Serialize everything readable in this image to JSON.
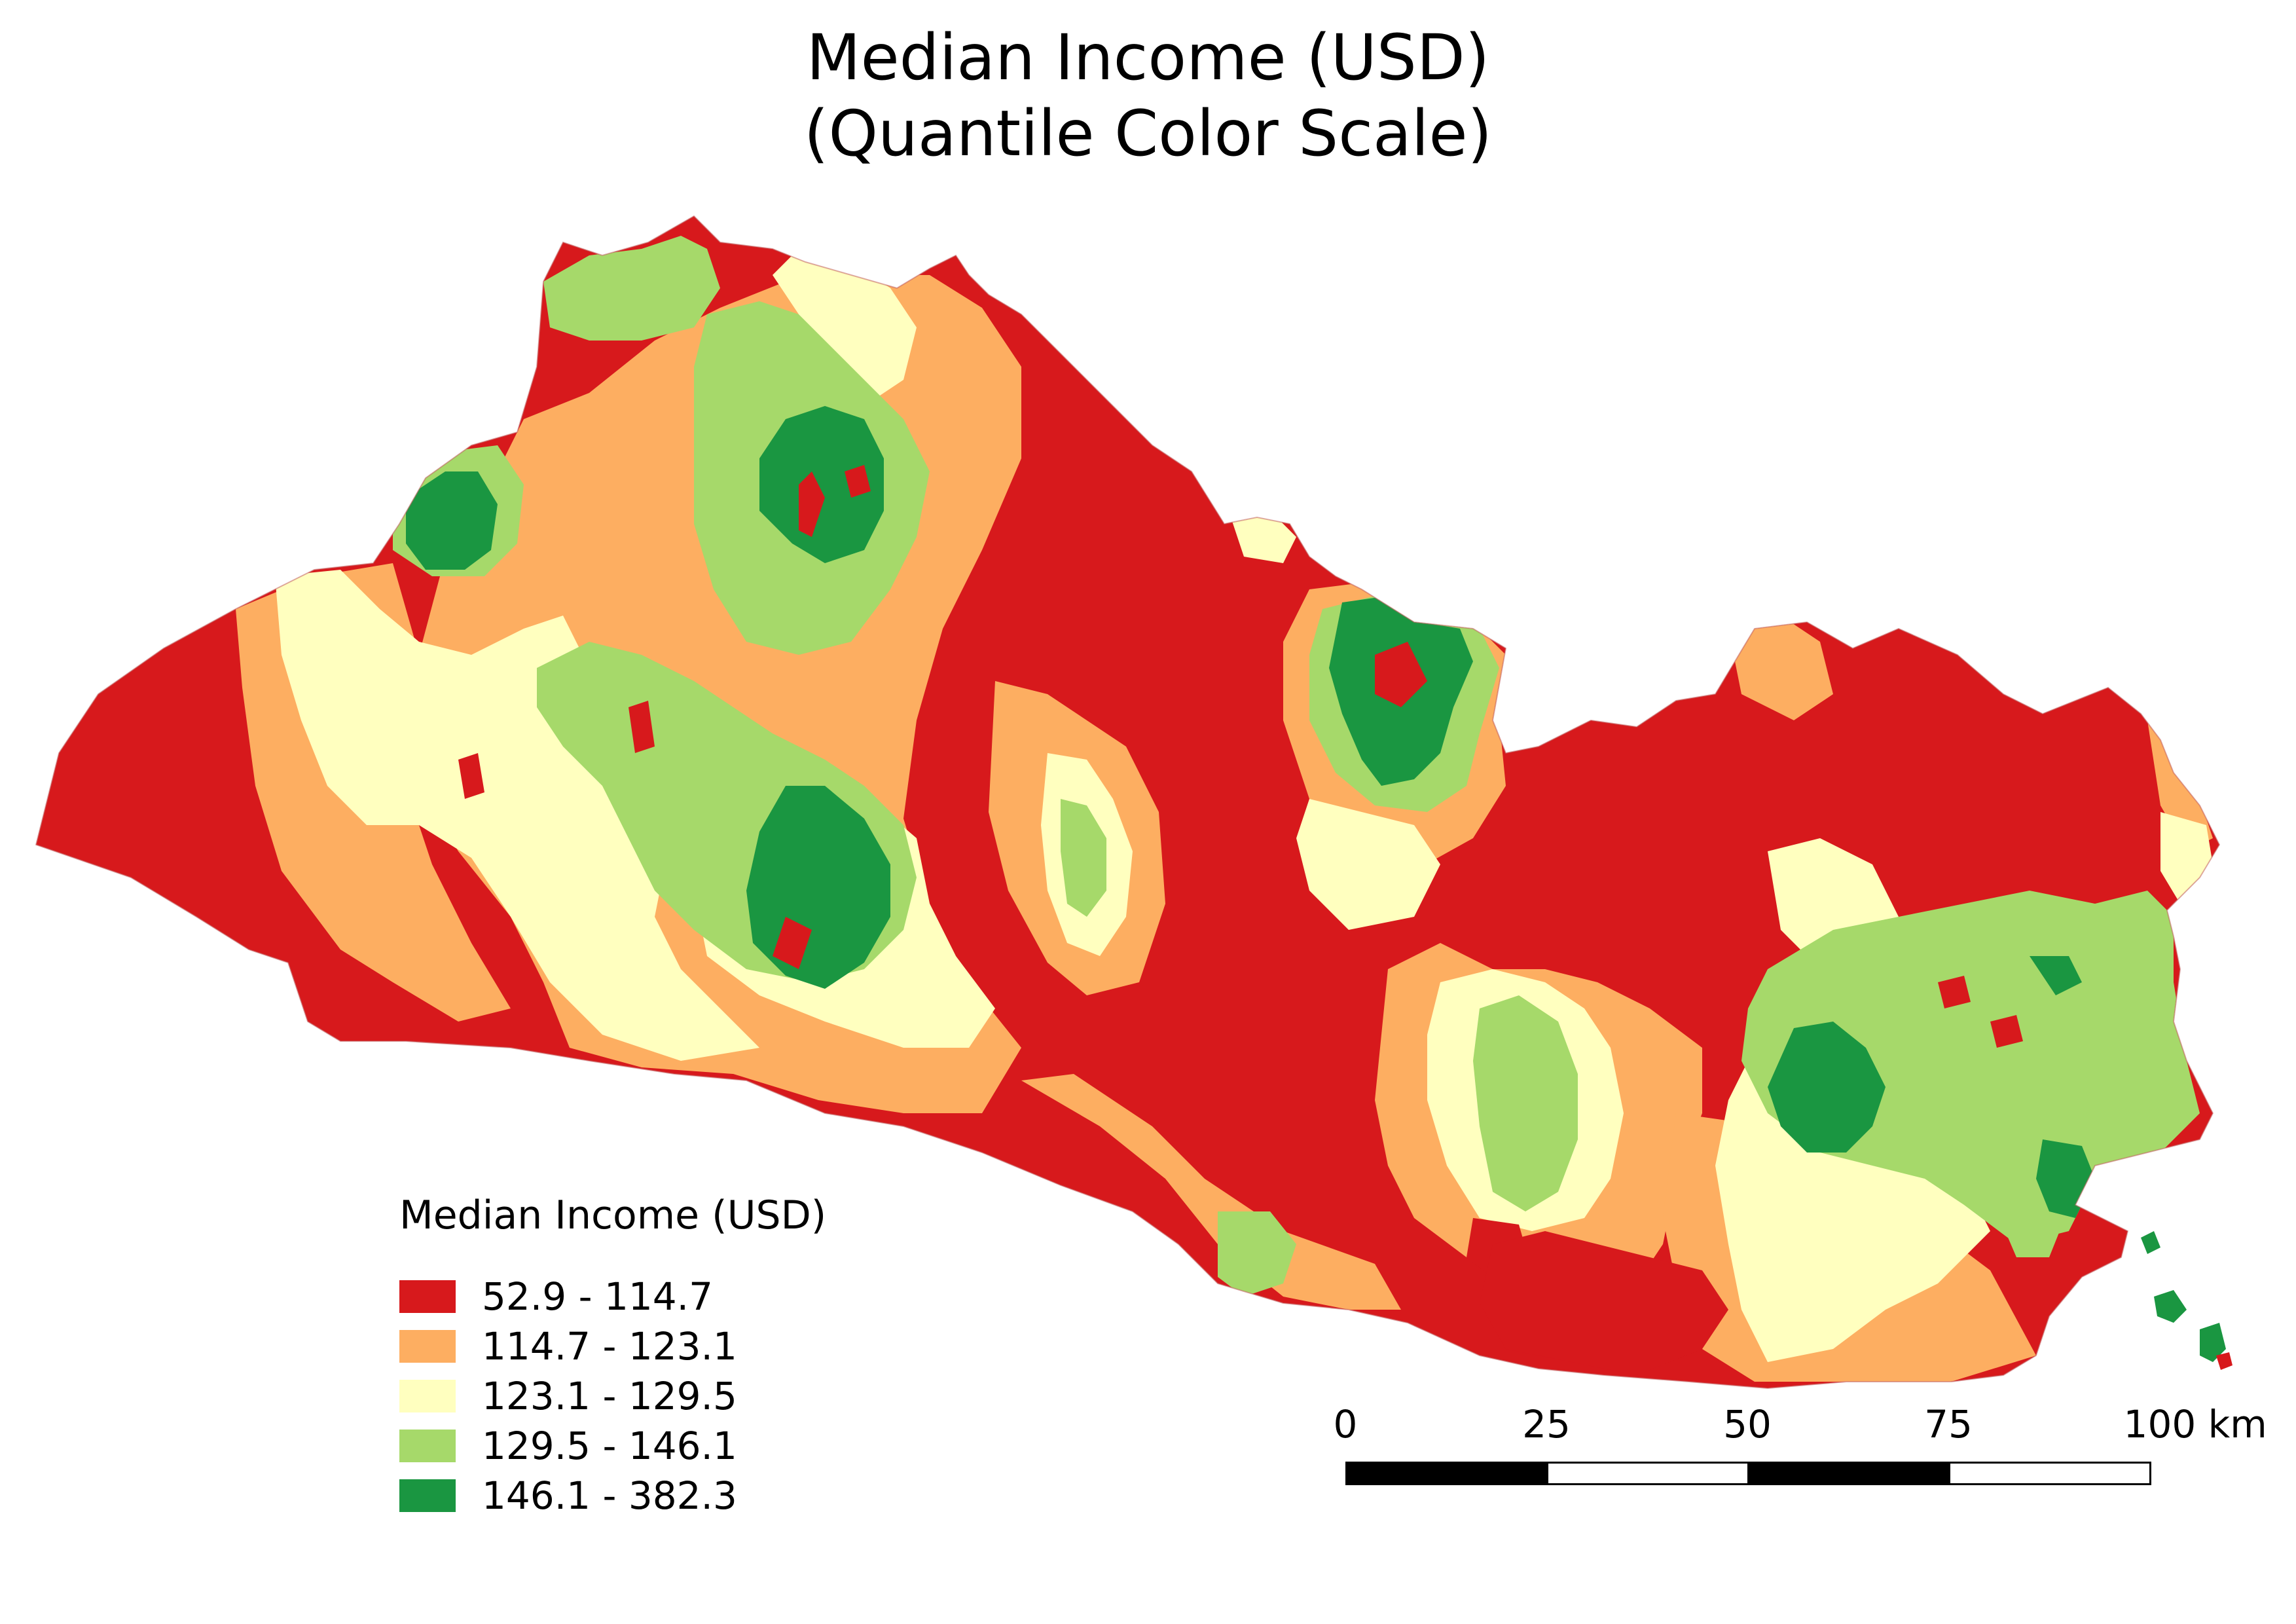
{
  "title_line1": "Median Income (USD)",
  "title_line2": "(Quantile Color Scale)",
  "legend": {
    "title": "Median Income (USD)",
    "classes": [
      {
        "label": "52.9 - 114.7",
        "color": "#d7191c"
      },
      {
        "label": "114.7 - 123.1",
        "color": "#fdae61"
      },
      {
        "label": "123.1 - 129.5",
        "color": "#ffffbf"
      },
      {
        "label": "129.5 - 146.1",
        "color": "#a6d96a"
      },
      {
        "label": "146.1 - 382.3",
        "color": "#1a9641"
      }
    ]
  },
  "scale": {
    "labels": [
      "0",
      "25",
      "50",
      "75",
      "100 km"
    ]
  }
}
